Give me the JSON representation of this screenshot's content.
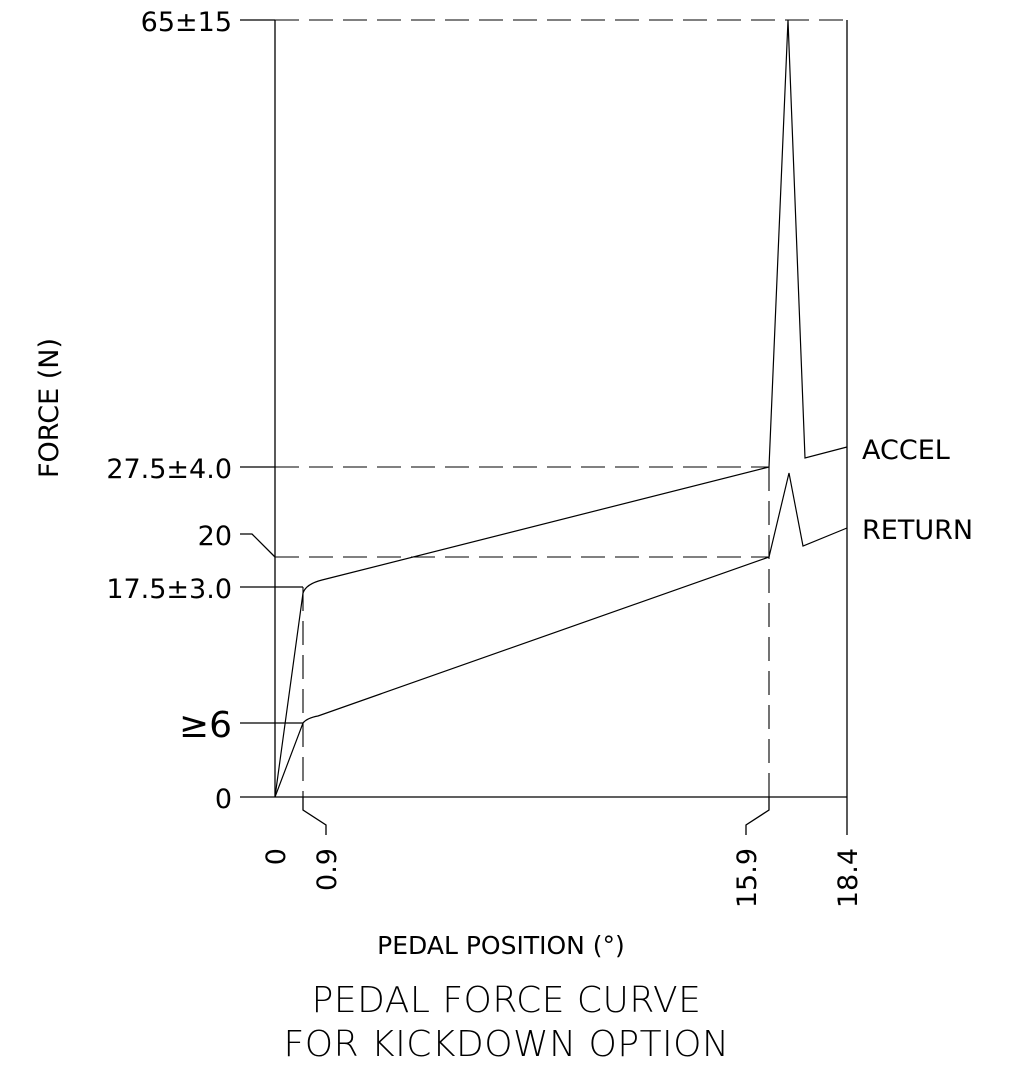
{
  "chart_data": {
    "type": "line",
    "title_lines": [
      "PEDAL FORCE CURVE",
      "FOR KICKDOWN OPTION"
    ],
    "xlabel": "PEDAL POSITION (°)",
    "ylabel": "FORCE (N)",
    "x_ticks": [
      "0",
      "0.9",
      "15.9",
      "18.4"
    ],
    "y_ticks": [
      "65±15",
      "27.5±4.0",
      "20",
      "17.5±3.0",
      "≥6",
      "0"
    ],
    "series": [
      {
        "name": "ACCEL"
      },
      {
        "name": "RETURN"
      }
    ],
    "grid": false
  }
}
